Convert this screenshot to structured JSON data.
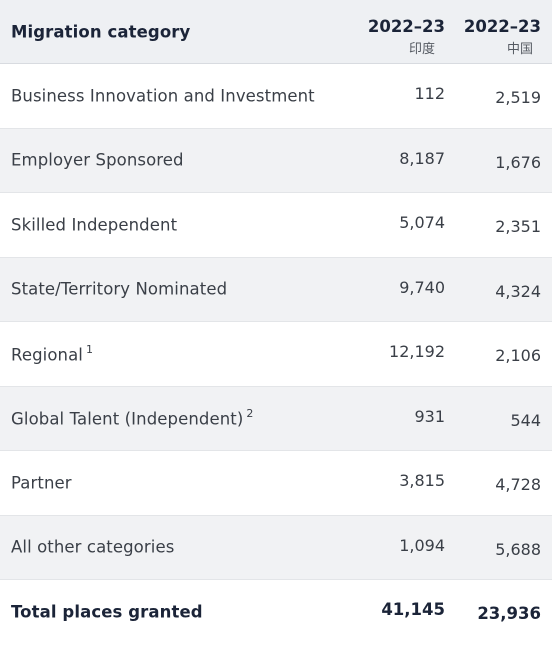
{
  "header": {
    "category": "Migration category",
    "col1_year": "2022–23",
    "col1_country": "印度",
    "col2_year": "2022–23",
    "col2_country": "中国"
  },
  "rows": [
    {
      "category": "Business Innovation and Investment",
      "note": "",
      "india": "112",
      "china": "2,519"
    },
    {
      "category": "Employer Sponsored",
      "note": "",
      "india": "8,187",
      "china": "1,676"
    },
    {
      "category": "Skilled Independent",
      "note": "",
      "india": "5,074",
      "china": "2,351"
    },
    {
      "category": "State/Territory Nominated",
      "note": "",
      "india": "9,740",
      "china": "4,324"
    },
    {
      "category": "Regional",
      "note": "1",
      "india": "12,192",
      "china": "2,106"
    },
    {
      "category": "Global Talent (Independent)",
      "note": "2",
      "india": "931",
      "china": "544"
    },
    {
      "category": "Partner",
      "note": "",
      "india": "3,815",
      "china": "4,728"
    },
    {
      "category": "All other categories",
      "note": "",
      "india": "1,094",
      "china": "5,688"
    }
  ],
  "total": {
    "category": "Total places granted",
    "india": "41,145",
    "china": "23,936"
  }
}
